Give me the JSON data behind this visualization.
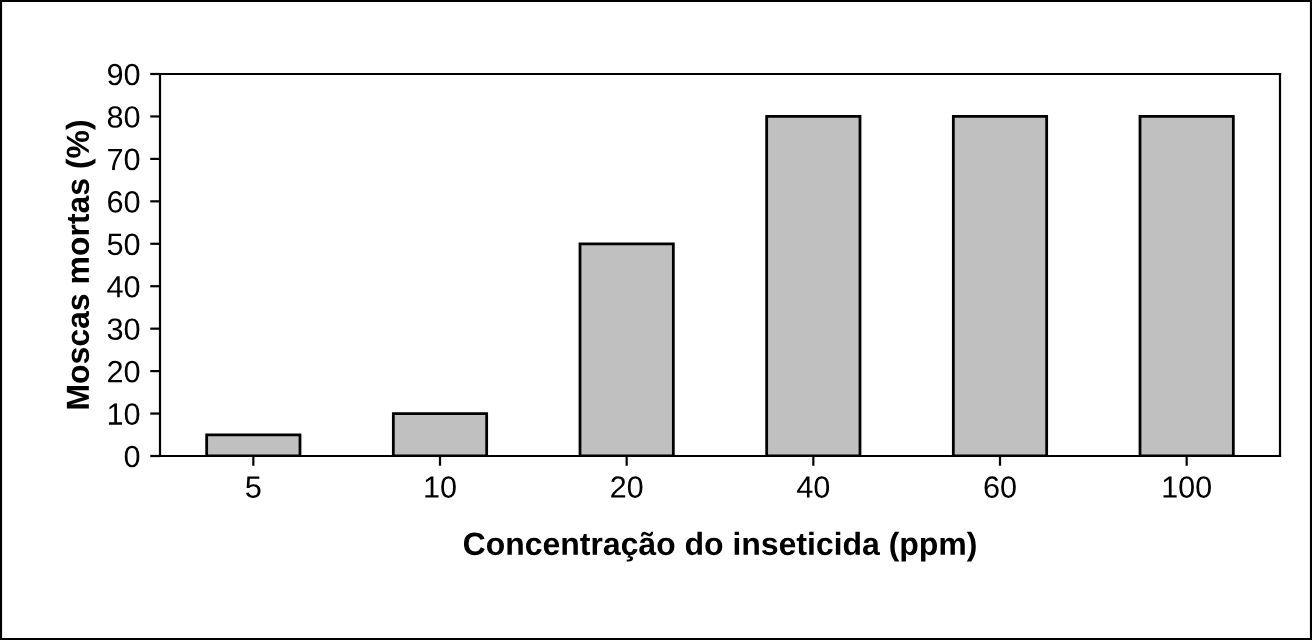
{
  "chart_data": {
    "type": "bar",
    "xlabel": "Concentração do inseticida (ppm)",
    "ylabel": "Moscas mortas (%)",
    "categories": [
      "5",
      "10",
      "20",
      "40",
      "60",
      "100"
    ],
    "values": [
      5,
      10,
      50,
      80,
      80,
      80
    ],
    "color": "#c0c0c0",
    "ylim": [
      0,
      90
    ],
    "yticks": [
      0,
      10,
      20,
      30,
      40,
      50,
      60,
      70,
      80,
      90
    ],
    "grid": false,
    "legend": false
  }
}
